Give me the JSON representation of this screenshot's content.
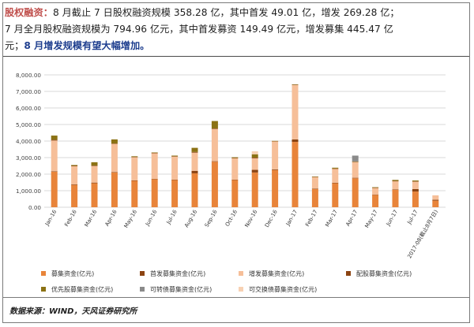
{
  "header": {
    "lead": "股权融资：",
    "line1": "8 月截止 7 日股权融资规模 358.28 亿，其中首发 49.01 亿，增发 269.28 亿；",
    "line2": "7 月全月股权融资规模为 794.96 亿元，其中首发募资 149.49 亿元，增发募集 445.47 亿",
    "line3": "元；",
    "highlight": "8 月增发规模有望大幅增加。"
  },
  "source": "数据来源：WIND，天风证券研究所",
  "colors": {
    "ipo": "#e8843a",
    "seo": "#f6bf99",
    "allot": "#8c4412",
    "pref": "#8b7214",
    "conv": "#8a8a8a",
    "exch": "#f7d1b3",
    "grid": "#d9d9d9",
    "header_accent": "#c0504d",
    "highlight": "#1f3f8f"
  },
  "legend": [
    {
      "key": "ipo",
      "label": "募集资金(亿元)"
    },
    {
      "key": "ipo_dup",
      "label": "首发募集资金(亿元)"
    },
    {
      "key": "seo",
      "label": "增发募集资金(亿元)"
    },
    {
      "key": "allot",
      "label": "配股募集资金(亿元)"
    },
    {
      "key": "pref",
      "label": "优先股募集资金(亿元)"
    },
    {
      "key": "conv",
      "label": "可转债募集资金(亿元)"
    },
    {
      "key": "exch",
      "label": "可交换债募集资金(亿元)"
    }
  ],
  "chart_data": {
    "type": "bar",
    "stacked": true,
    "ylim": [
      0,
      8000
    ],
    "yticks": [
      "0.00",
      "1,000.00",
      "2,000.00",
      "3,000.00",
      "4,000.00",
      "5,000.00",
      "6,000.00",
      "7,000.00",
      "8,000.00"
    ],
    "grid": true,
    "legend_position": "bottom",
    "categories": [
      "Jan-16",
      "Feb-16",
      "Mar-16",
      "Apr-16",
      "May-16",
      "Jun-16",
      "Jul-16",
      "Aug-16",
      "Sep-16",
      "Oct-16",
      "Nov-16",
      "Dec-16",
      "Jan-17",
      "Feb-17",
      "Mar-17",
      "Apr-17",
      "May-17",
      "Jun-17",
      "Jul-17",
      "2017-08(截止8月7日)"
    ],
    "series": [
      {
        "name": "首发募集资金(亿元)",
        "color_key": "ipo",
        "values": [
          2150,
          1350,
          1450,
          2100,
          1600,
          1700,
          1650,
          2050,
          2750,
          1650,
          2100,
          2250,
          3950,
          1100,
          1450,
          1750,
          750,
          1050,
          950,
          400
        ]
      },
      {
        "name": "首发募集资金(亿元)",
        "color_key": "allot",
        "values": [
          30,
          30,
          40,
          30,
          20,
          20,
          20,
          150,
          30,
          20,
          160,
          40,
          150,
          30,
          30,
          30,
          20,
          30,
          150,
          50
        ]
      },
      {
        "name": "增发募集资金(亿元)",
        "color_key": "seo",
        "values": [
          1850,
          1100,
          1000,
          1700,
          1400,
          1550,
          1400,
          1100,
          1950,
          1300,
          700,
          1700,
          3300,
          700,
          850,
          950,
          400,
          500,
          445,
          270
        ]
      },
      {
        "name": "配股募集资金(亿元)",
        "color_key": "allot",
        "values": [
          50,
          20,
          30,
          20,
          20,
          10,
          10,
          40,
          30,
          10,
          40,
          10,
          10,
          10,
          10,
          20,
          10,
          10,
          20,
          0
        ]
      },
      {
        "name": "优先股募集资金(亿元)",
        "color_key": "pref",
        "values": [
          250,
          50,
          200,
          250,
          40,
          30,
          40,
          250,
          450,
          40,
          200,
          10,
          10,
          10,
          50,
          20,
          30,
          60,
          50,
          0
        ]
      },
      {
        "name": "可转债募集资金(亿元)",
        "color_key": "conv",
        "values": [
          0,
          0,
          0,
          0,
          0,
          0,
          0,
          0,
          0,
          0,
          0,
          0,
          0,
          0,
          0,
          350,
          0,
          0,
          0,
          0
        ]
      },
      {
        "name": "可交换债募集资金(亿元)",
        "color_key": "exch",
        "values": [
          0,
          0,
          0,
          0,
          0,
          0,
          0,
          0,
          0,
          0,
          180,
          0,
          0,
          0,
          0,
          0,
          0,
          0,
          0,
          0
        ]
      }
    ]
  }
}
